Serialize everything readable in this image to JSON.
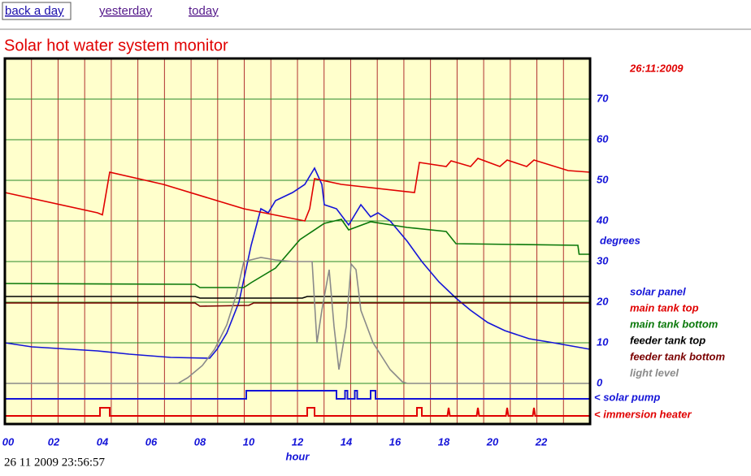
{
  "nav": {
    "links": [
      "back a day",
      "yesterday",
      "today"
    ]
  },
  "header": {
    "title": "Solar hot water system monitor",
    "date": "26:11:2009"
  },
  "footer": {
    "timestamp": "26 11 2009 23:56:57"
  },
  "chart_data": {
    "type": "line",
    "x_label": "hour",
    "y_label": "degrees",
    "xlim": [
      0,
      24
    ],
    "xticks": [
      {
        "value": 0,
        "label": "00"
      },
      {
        "value": 2,
        "label": "02"
      },
      {
        "value": 4,
        "label": "04"
      },
      {
        "value": 6,
        "label": "06"
      },
      {
        "value": 8,
        "label": "08"
      },
      10,
      12,
      14,
      16,
      18,
      20,
      22
    ],
    "ylim": [
      -10,
      80
    ],
    "yticks": [
      0,
      10,
      20,
      30,
      40,
      50,
      60,
      70
    ],
    "grid": true,
    "series": [
      {
        "name": "solar panel",
        "color": "#1414d8",
        "x": [
          0,
          1.1,
          3.8,
          5.1,
          6.8,
          8.4,
          8.7,
          9.1,
          9.6,
          10.1,
          10.5,
          10.8,
          11.1,
          11.8,
          12.3,
          12.7,
          13.0,
          13.1,
          13.6,
          14.1,
          14.6,
          15.0,
          15.3,
          15.8,
          16.5,
          17.1,
          17.8,
          18.5,
          19.1,
          19.8,
          20.5,
          21.5,
          22.5,
          24
        ],
        "values": [
          10,
          9,
          8,
          7.2,
          6.4,
          6.2,
          8.4,
          12.4,
          20,
          34,
          43,
          42,
          45,
          47,
          49,
          53,
          49,
          44,
          43,
          39,
          44,
          41,
          42,
          40,
          35,
          30,
          25,
          21,
          18,
          15,
          13,
          11,
          10,
          8.4
        ]
      },
      {
        "name": "main tank top",
        "color": "#e00000",
        "x": [
          0,
          3.8,
          4.0,
          4.3,
          6.5,
          9.8,
          12.3,
          12.5,
          12.7,
          13.8,
          16.8,
          17.0,
          18.1,
          18.3,
          19.1,
          19.4,
          20.3,
          20.6,
          21.4,
          21.7,
          23.1,
          24
        ],
        "values": [
          47,
          42,
          41.5,
          52,
          49,
          43,
          40,
          43,
          50.4,
          49,
          47,
          54.4,
          53.4,
          54.8,
          53.4,
          55.4,
          53.4,
          55,
          53.4,
          55,
          52.4,
          52
        ]
      },
      {
        "name": "main tank bottom",
        "color": "#0a780a",
        "x": [
          0,
          7.8,
          8.0,
          9.8,
          10.1,
          11.1,
          12.1,
          13.1,
          13.8,
          14.1,
          15.0,
          16.5,
          18.1,
          18.5,
          23.5,
          23.55,
          24
        ],
        "values": [
          24.6,
          24.4,
          23.6,
          23.6,
          24.8,
          28.4,
          35.4,
          39.4,
          40.4,
          37.8,
          39.8,
          38.4,
          37.4,
          34.4,
          34,
          31.8,
          31.8
        ]
      },
      {
        "name": "feeder tank top",
        "color": "#000000",
        "x": [
          0,
          7.8,
          8.0,
          12.2,
          12.4,
          24
        ],
        "values": [
          21.4,
          21.4,
          21,
          21,
          21.4,
          21.4
        ]
      },
      {
        "name": "feeder tank bottom",
        "color": "#7a0000",
        "x": [
          0,
          7.8,
          8.0,
          10.0,
          10.2,
          24
        ],
        "values": [
          19.8,
          19.8,
          19,
          19.2,
          19.8,
          19.8
        ]
      },
      {
        "name": "light level",
        "color": "#8a8a8a",
        "x": [
          0,
          7.1,
          7.5,
          8.1,
          8.6,
          9.1,
          9.5,
          9.8,
          10.5,
          11.1,
          11.8,
          12.6,
          12.8,
          13.0,
          13.3,
          13.5,
          13.7,
          14.0,
          14.2,
          14.4,
          14.6,
          15.1,
          15.8,
          16.3,
          16.5,
          24
        ],
        "values": [
          0,
          0,
          1.4,
          4.4,
          8.4,
          14.4,
          22,
          30,
          31,
          30.4,
          30,
          30,
          10,
          18,
          28,
          14,
          3.4,
          14,
          29.4,
          28,
          18,
          10,
          3.4,
          0.4,
          0,
          0
        ]
      }
    ],
    "state_series": [
      {
        "name": "< solar pump",
        "color": "#1414d8",
        "x": [
          0,
          9.9,
          9.9,
          13.6,
          13.6,
          13.95,
          13.95,
          14.05,
          14.05,
          14.35,
          14.35,
          14.45,
          14.45,
          15.0,
          15.0,
          15.2,
          15.2,
          24
        ],
        "values": [
          0,
          0,
          1,
          1,
          0,
          0,
          1,
          1,
          0,
          0,
          1,
          1,
          0,
          0,
          1,
          1,
          0,
          0
        ]
      },
      {
        "name": "< immersion heater",
        "color": "#e00000",
        "x": [
          0,
          3.9,
          3.9,
          4.3,
          4.3,
          12.4,
          12.4,
          12.7,
          12.7,
          16.9,
          16.9,
          17.1,
          17.1,
          18.15,
          18.2,
          18.25,
          19.35,
          19.4,
          19.45,
          20.55,
          20.6,
          20.65,
          21.65,
          21.7,
          21.75,
          24
        ],
        "values": [
          0,
          0,
          1,
          1,
          0,
          0,
          1,
          1,
          0,
          0,
          1,
          1,
          0,
          0,
          1,
          0,
          0,
          1,
          0,
          0,
          1,
          0,
          0,
          1,
          0,
          0
        ]
      }
    ]
  }
}
